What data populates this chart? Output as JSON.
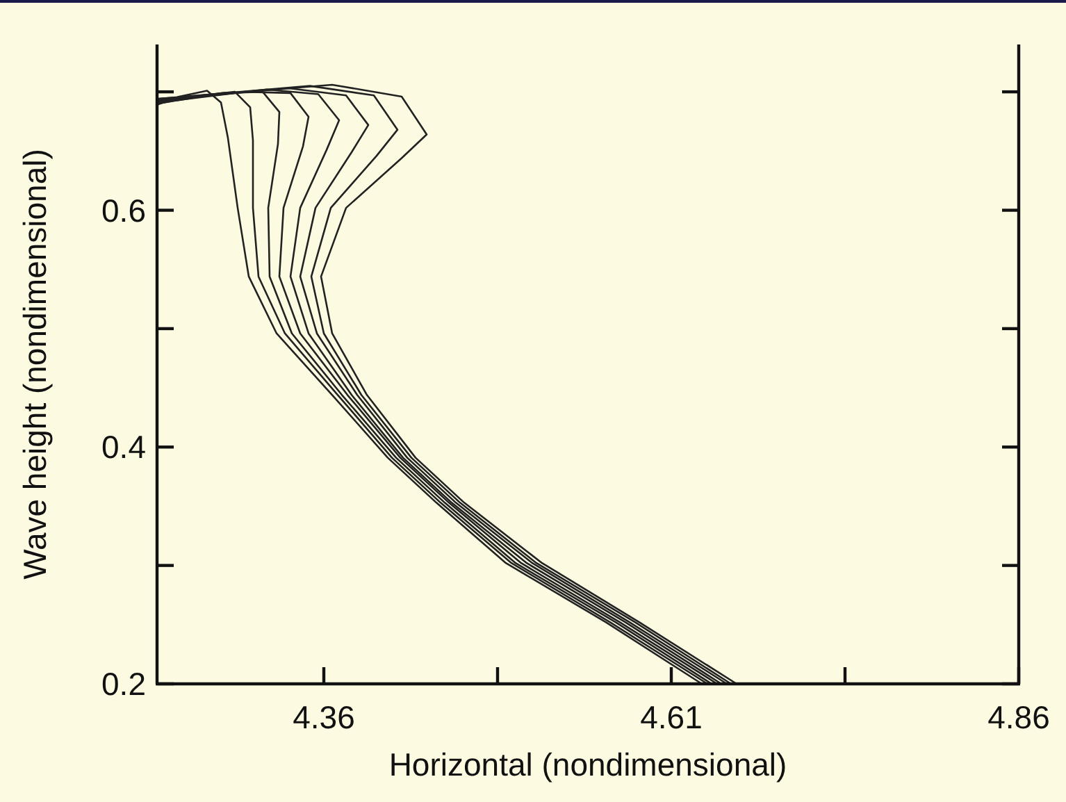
{
  "chart_data": {
    "type": "line",
    "xlabel": "Horizontal (nondimensional)",
    "ylabel": "Wave height (nondimensional)",
    "xlim": [
      4.24,
      4.86
    ],
    "ylim": [
      0.2,
      0.74
    ],
    "xticks": [
      4.36,
      {
        "value": 4.485,
        "label": null
      },
      4.61,
      {
        "value": 4.735,
        "label": null
      },
      4.86
    ],
    "yticks": [
      0.2,
      {
        "value": 0.3,
        "label": null
      },
      0.4,
      {
        "value": 0.5,
        "label": null
      },
      0.6,
      {
        "value": 0.7,
        "label": null
      }
    ],
    "grid": false,
    "marker": "none",
    "line_style": "solid",
    "series": [
      {
        "color": "#222222",
        "x": [
          4.632,
          4.563,
          4.491,
          4.441,
          4.406,
          4.366,
          4.326,
          4.306,
          4.298,
          4.291,
          4.286,
          4.276,
          4.256,
          4.24
        ],
        "values": [
          0.2,
          0.252,
          0.302,
          0.353,
          0.391,
          0.444,
          0.496,
          0.544,
          0.602,
          0.661,
          0.691,
          0.701,
          0.696,
          0.689
        ]
      },
      {
        "color": "#222222",
        "x": [
          4.636,
          4.566,
          4.495,
          4.444,
          4.409,
          4.37,
          4.332,
          4.313,
          4.309,
          4.309,
          4.307,
          4.296,
          4.272,
          4.24
        ],
        "values": [
          0.2,
          0.252,
          0.302,
          0.353,
          0.391,
          0.444,
          0.496,
          0.544,
          0.602,
          0.659,
          0.687,
          0.7,
          0.697,
          0.69
        ]
      },
      {
        "color": "#222222",
        "x": [
          4.639,
          4.57,
          4.498,
          4.447,
          4.412,
          4.373,
          4.337,
          4.321,
          4.32,
          4.327,
          4.328,
          4.316,
          4.287,
          4.24
        ],
        "values": [
          0.2,
          0.252,
          0.302,
          0.353,
          0.391,
          0.444,
          0.496,
          0.544,
          0.602,
          0.656,
          0.683,
          0.7,
          0.699,
          0.69
        ]
      },
      {
        "color": "#222222",
        "x": [
          4.643,
          4.573,
          4.502,
          4.45,
          4.415,
          4.377,
          4.343,
          4.328,
          4.331,
          4.345,
          4.349,
          4.336,
          4.303,
          4.24
        ],
        "values": [
          0.2,
          0.252,
          0.302,
          0.353,
          0.391,
          0.444,
          0.496,
          0.544,
          0.602,
          0.654,
          0.679,
          0.699,
          0.7,
          0.691
        ]
      },
      {
        "color": "#222222",
        "x": [
          4.646,
          4.577,
          4.506,
          4.452,
          4.417,
          4.38,
          4.349,
          4.336,
          4.343,
          4.362,
          4.371,
          4.356,
          4.319,
          4.24
        ],
        "values": [
          0.2,
          0.252,
          0.302,
          0.353,
          0.391,
          0.444,
          0.496,
          0.544,
          0.602,
          0.651,
          0.676,
          0.698,
          0.702,
          0.692
        ]
      },
      {
        "color": "#222222",
        "x": [
          4.65,
          4.58,
          4.51,
          4.455,
          4.42,
          4.384,
          4.355,
          4.343,
          4.354,
          4.38,
          4.392,
          4.376,
          4.335,
          4.24
        ],
        "values": [
          0.2,
          0.252,
          0.302,
          0.353,
          0.391,
          0.444,
          0.496,
          0.544,
          0.602,
          0.649,
          0.672,
          0.697,
          0.703,
          0.693
        ]
      },
      {
        "color": "#222222",
        "x": [
          4.653,
          4.584,
          4.513,
          4.458,
          4.423,
          4.387,
          4.36,
          4.351,
          4.365,
          4.398,
          4.413,
          4.396,
          4.35,
          4.24
        ],
        "values": [
          0.2,
          0.252,
          0.302,
          0.353,
          0.391,
          0.444,
          0.496,
          0.544,
          0.602,
          0.646,
          0.668,
          0.697,
          0.705,
          0.694
        ]
      },
      {
        "color": "#222222",
        "x": [
          4.657,
          4.587,
          4.517,
          4.461,
          4.426,
          4.391,
          4.366,
          4.358,
          4.376,
          4.416,
          4.434,
          4.416,
          4.366,
          4.24
        ],
        "values": [
          0.2,
          0.252,
          0.302,
          0.353,
          0.391,
          0.444,
          0.496,
          0.544,
          0.602,
          0.644,
          0.664,
          0.696,
          0.706,
          0.694
        ]
      }
    ]
  }
}
